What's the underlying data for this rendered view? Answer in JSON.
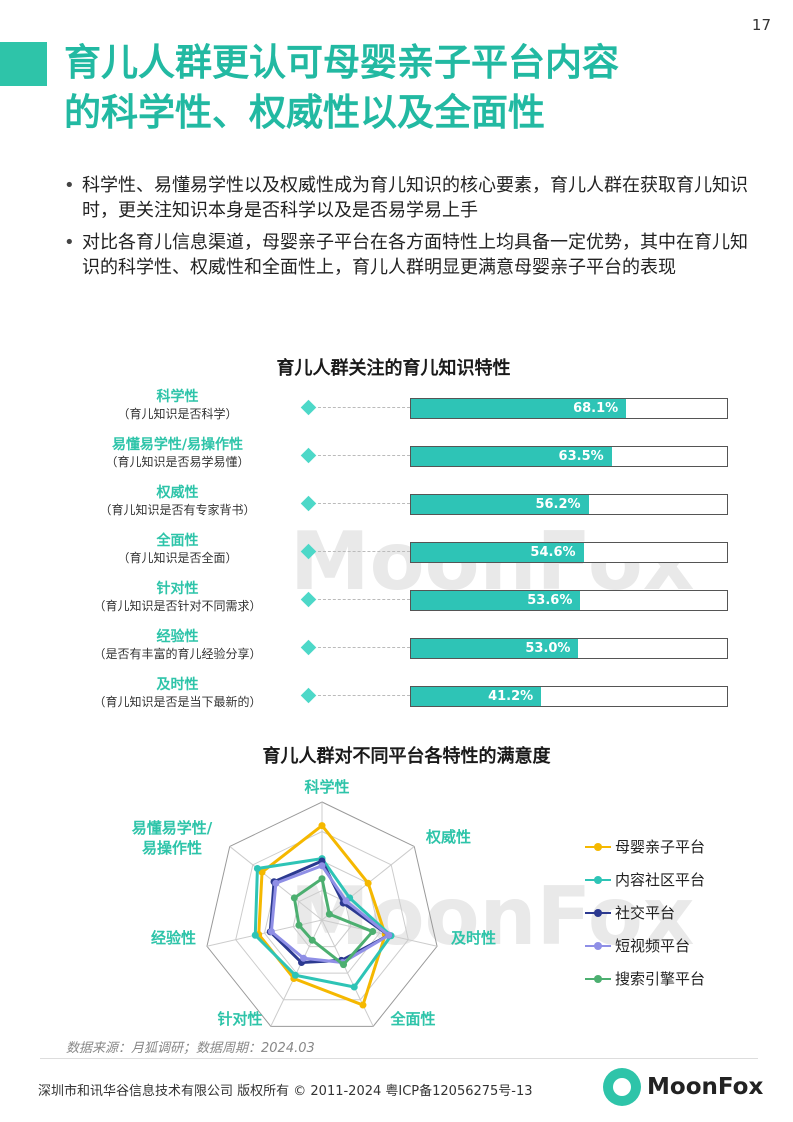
{
  "page_number": "17",
  "title_line1": "育儿人群更认可母婴亲子平台内容",
  "title_line2": "的科学性、权威性以及全面性",
  "bullets": [
    "科学性、易懂易学性以及权威性成为育儿知识的核心要素，育儿人群在获取育儿知识时，更关注知识本身是否科学以及是否易学易上手",
    "对比各育儿信息渠道，母婴亲子平台在各方面特性上均具备一定优势，其中在育儿知识的科学性、权威性和全面性上，育儿人群明显更满意母婴亲子平台的表现"
  ],
  "chart_data": [
    {
      "type": "bar",
      "title": "育儿人群关注的育儿知识特性",
      "categories": [
        "科学性",
        "易懂易学性/易操作性",
        "权威性",
        "全面性",
        "针对性",
        "经验性",
        "及时性"
      ],
      "descriptions": [
        "（育儿知识是否科学）",
        "（育儿知识是否易学易懂）",
        "（育儿知识是否有专家背书）",
        "（育儿知识是否全面）",
        "（育儿知识是否针对不同需求）",
        "（是否有丰富的育儿经验分享）",
        "（育儿知识是否是当下最新的）"
      ],
      "values": [
        68.1,
        63.5,
        56.2,
        54.6,
        53.6,
        53.0,
        41.2
      ],
      "value_labels": [
        "68.1%",
        "63.5%",
        "56.2%",
        "54.6%",
        "53.6%",
        "53.0%",
        "41.2%"
      ],
      "xlim": [
        0,
        100
      ],
      "bar_color": "#2ec4b6"
    },
    {
      "type": "radar",
      "title": "育儿人群对不同平台各特性的满意度",
      "axes": [
        "科学性",
        "权威性",
        "及时性",
        "全面性",
        "针对性",
        "经验性",
        "易懂易学性/易操作性"
      ],
      "rmax": 100,
      "series": [
        {
          "name": "母婴亲子平台",
          "color": "#f5b800",
          "values": [
            80,
            50,
            55,
            80,
            55,
            55,
            65
          ]
        },
        {
          "name": "内容社区平台",
          "color": "#2ec4b6",
          "values": [
            52,
            30,
            60,
            63,
            52,
            58,
            70
          ]
        },
        {
          "name": "社交平台",
          "color": "#2b3990",
          "values": [
            50,
            23,
            58,
            38,
            40,
            45,
            52
          ]
        },
        {
          "name": "短视频平台",
          "color": "#8f8fe6",
          "values": [
            46,
            26,
            58,
            40,
            36,
            44,
            50
          ]
        },
        {
          "name": "搜索引擎平台",
          "color": "#4caf70",
          "values": [
            35,
            8,
            44,
            42,
            19,
            20,
            30
          ]
        }
      ]
    }
  ],
  "watermark": "MoonFox",
  "source": "数据来源：月狐调研；数据周期：2024.03",
  "footer": "深圳市和讯华谷信息技术有限公司 版权所有 © 2011-2024 粤ICP备12056275号-13",
  "logo_text": "MoonFox"
}
